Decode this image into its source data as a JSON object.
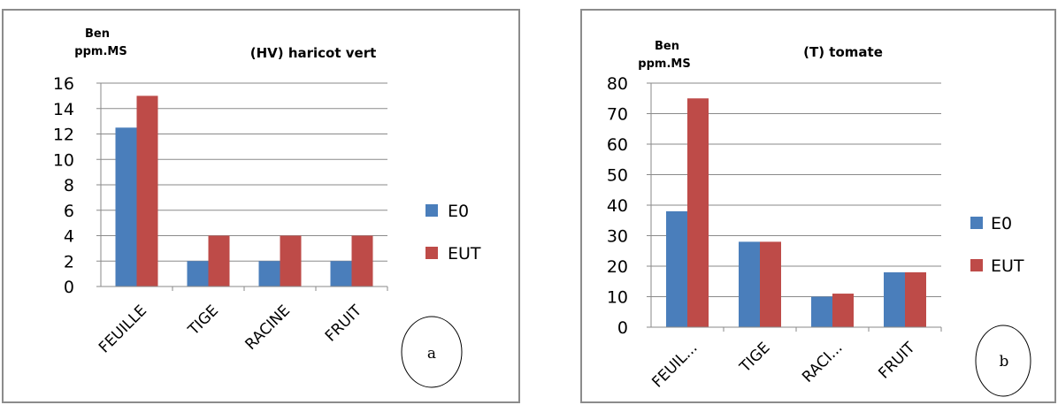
{
  "colors": {
    "E0": "#4a7ebb",
    "EUT": "#be4b48",
    "grid": "#8a8a8a",
    "border": "#8c8c8c"
  },
  "chart_data": [
    {
      "type": "bar",
      "id": "a",
      "ylabel_line1": "Ben",
      "ylabel_line2": "ppm.MS",
      "title": "(HV) haricot vert",
      "categories": [
        "FEUILLE",
        "TIGE",
        "RACINE",
        "FRUIT"
      ],
      "series": [
        {
          "name": "E0",
          "values": [
            12.5,
            2,
            2,
            2
          ]
        },
        {
          "name": "EUT",
          "values": [
            15,
            4,
            4,
            4
          ]
        }
      ],
      "ylim": [
        0,
        16
      ],
      "yticks": [
        0,
        2,
        4,
        6,
        8,
        10,
        12,
        14,
        16
      ],
      "grid": true,
      "legend_position": "right",
      "panel_label": "a"
    },
    {
      "type": "bar",
      "id": "b",
      "ylabel_line1": "Ben",
      "ylabel_line2": "ppm.MS",
      "title": "(T) tomate",
      "categories": [
        "FEUIL...",
        "TIGE",
        "RACI...",
        "FRUIT"
      ],
      "series": [
        {
          "name": "E0",
          "values": [
            38,
            28,
            10,
            18
          ]
        },
        {
          "name": "EUT",
          "values": [
            75,
            28,
            11,
            18
          ]
        }
      ],
      "ylim": [
        0,
        80
      ],
      "yticks": [
        0,
        10,
        20,
        30,
        40,
        50,
        60,
        70,
        80
      ],
      "grid": true,
      "legend_position": "right",
      "panel_label": "b"
    }
  ]
}
